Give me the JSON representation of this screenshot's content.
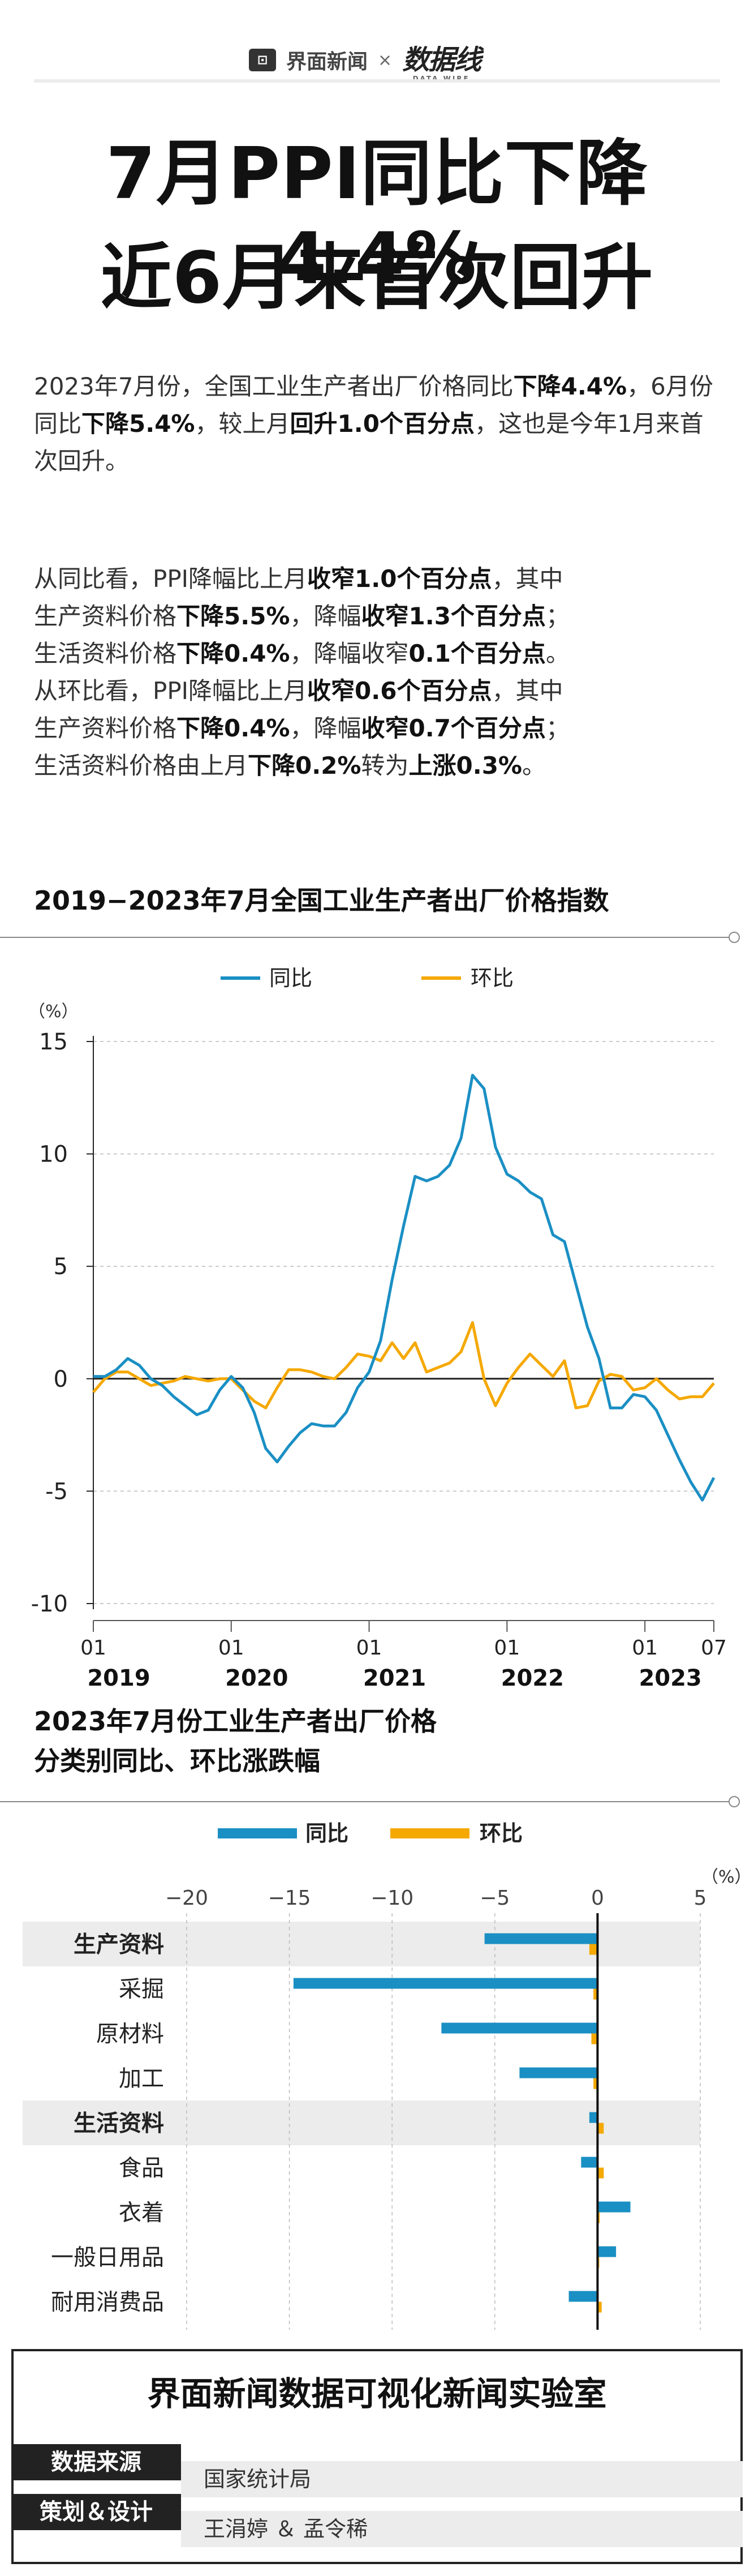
{
  "brand": {
    "left_name": "界面新闻",
    "separator": "×",
    "right_name": "数据线",
    "right_sub": "DATA WIRE"
  },
  "headline": {
    "line1": "7月PPI同比下降4.4%",
    "line2": "近6月来首次回升"
  },
  "paragraph1": {
    "p1": "2023年7月份，全国工业生产者出厂价格同比",
    "b1": "下降4.4%",
    "p2": "，6月份同比",
    "b2": "下降5.4%",
    "p3": "，较上月",
    "b3": "回升1.0个百分点",
    "p4": "，这也是今年1月来首次回升。"
  },
  "paragraph2": {
    "t1": "从同比看，PPI降幅比上月",
    "t1b": "收窄1.0个百分点",
    "t1c": "，其中",
    "t2": "生产资料价格",
    "t2b": "下降5.5%",
    "t2c": "，降幅",
    "t2d": "收窄1.3个百分点",
    "t2e": "；",
    "t3": "生活资料价格",
    "t3b": "下降0.4%",
    "t3c": "，降幅收窄",
    "t3d": "0.1个百分点",
    "t3e": "。",
    "t4": "从环比看，PPI降幅比上月",
    "t4b": "收窄0.6个百分点",
    "t4c": "，其中",
    "t5": "生产资料价格",
    "t5b": "下降0.4%",
    "t5c": "，降幅",
    "t5d": "收窄0.7个百分点",
    "t5e": "；",
    "t6": "生活资料价格由上月",
    "t6b": "下降0.2%",
    "t6c": "转为",
    "t6d": "上涨0.3%",
    "t6e": "。"
  },
  "colors": {
    "yoy": "#1a8fc4",
    "mom": "#f5a800",
    "axis": "#222",
    "grid": "#bbb",
    "band": "#ececec"
  },
  "chart_data": [
    {
      "type": "line",
      "title": "2019−2023年7月全国工业生产者出厂价格指数",
      "ylabel": "（%）",
      "ylim": [
        -10,
        15
      ],
      "yticks": [
        15,
        10,
        5,
        0,
        -5,
        -10
      ],
      "legend": [
        "同比",
        "环比"
      ],
      "xtick_month": [
        "01",
        "01",
        "01",
        "01",
        "01",
        "07"
      ],
      "xtick_year": [
        "2019",
        "2020",
        "2021",
        "2022",
        "2023",
        ""
      ],
      "series": [
        {
          "name": "同比",
          "values": [
            0.1,
            0.1,
            0.4,
            0.9,
            0.6,
            0.0,
            -0.3,
            -0.8,
            -1.2,
            -1.6,
            -1.4,
            -0.5,
            0.1,
            -0.4,
            -1.5,
            -3.1,
            -3.7,
            -3.0,
            -2.4,
            -2.0,
            -2.1,
            -2.1,
            -1.5,
            -0.4,
            0.3,
            1.7,
            4.4,
            6.8,
            9.0,
            8.8,
            9.0,
            9.5,
            10.7,
            13.5,
            12.9,
            10.3,
            9.1,
            8.8,
            8.3,
            8.0,
            6.4,
            6.1,
            4.2,
            2.3,
            0.9,
            -1.3,
            -1.3,
            -0.7,
            -0.8,
            -1.4,
            -2.5,
            -3.6,
            -4.6,
            -5.4,
            -4.4
          ]
        },
        {
          "name": "环比",
          "values": [
            -0.6,
            0.0,
            0.3,
            0.3,
            0.0,
            -0.3,
            -0.2,
            -0.1,
            0.1,
            0.0,
            -0.1,
            0.0,
            0.0,
            -0.5,
            -1.0,
            -1.3,
            -0.4,
            0.4,
            0.4,
            0.3,
            0.1,
            0.0,
            0.5,
            1.1,
            1.0,
            0.8,
            1.6,
            0.9,
            1.6,
            0.3,
            0.5,
            0.7,
            1.2,
            2.5,
            0.0,
            -1.2,
            -0.2,
            0.5,
            1.1,
            0.6,
            0.1,
            0.8,
            -1.3,
            -1.2,
            -0.1,
            0.2,
            0.1,
            -0.5,
            -0.4,
            0.0,
            -0.5,
            -0.9,
            -0.8,
            -0.8,
            -0.2
          ]
        }
      ]
    },
    {
      "type": "bar",
      "title_line1": "2023年7月份工业生产者出厂价格",
      "title_line2": "分类别同比、环比涨跌幅",
      "xlabel": "（%）",
      "xlim": [
        -20,
        5
      ],
      "xticks": [
        -20,
        -15,
        -10,
        -5,
        0,
        5
      ],
      "legend": [
        "同比",
        "环比"
      ],
      "categories": [
        "生产资料",
        "采掘",
        "原材料",
        "加工",
        "生活资料",
        "食品",
        "衣着",
        "一般日用品",
        "耐用消费品"
      ],
      "bold": [
        true,
        false,
        false,
        false,
        true,
        false,
        false,
        false,
        false
      ],
      "series": [
        {
          "name": "同比",
          "values": [
            -5.5,
            -14.8,
            -7.6,
            -3.8,
            -0.4,
            -0.8,
            1.6,
            0.9,
            -1.4
          ]
        },
        {
          "name": "环比",
          "values": [
            -0.4,
            -0.2,
            -0.3,
            -0.2,
            0.3,
            0.3,
            0.1,
            0.0,
            0.2
          ]
        }
      ]
    }
  ],
  "footer": {
    "title": "界面新闻数据可视化新闻实验室",
    "source_label": "数据来源",
    "source_value": "国家统计局",
    "design_label": "策划＆设计",
    "design_value": "王涓婷 ＆ 孟令稀"
  }
}
